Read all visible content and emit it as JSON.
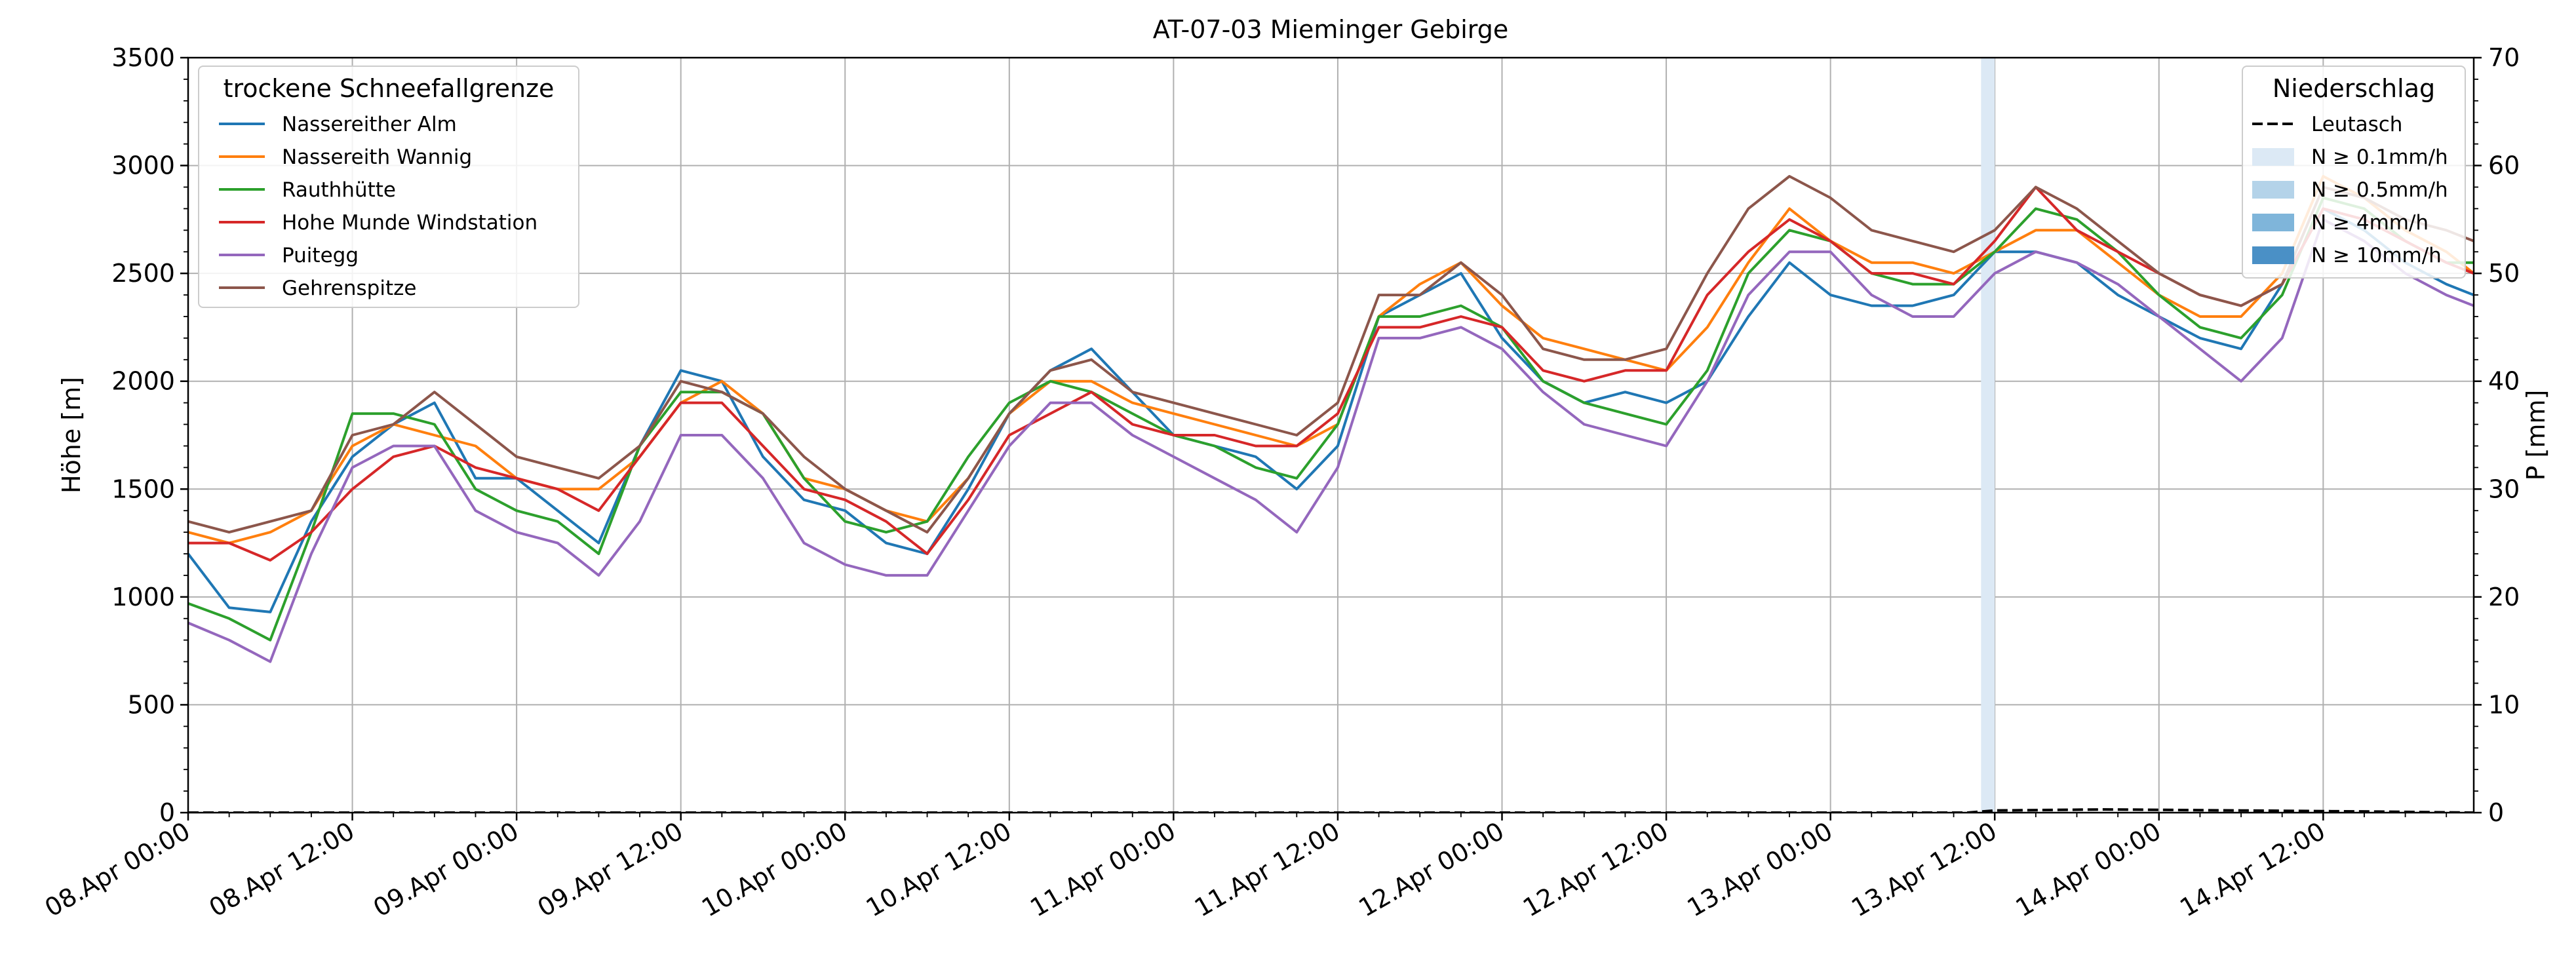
{
  "chart_data": {
    "type": "line",
    "title": "AT-07-03 Mieminger Gebirge",
    "ylabel": "Höhe [m]",
    "y2label": "P [mm]",
    "xlim": [
      "2024-04-08 00:00",
      "2024-04-14 22:00"
    ],
    "ylim": [
      0,
      3500
    ],
    "y2lim": [
      0,
      70
    ],
    "yticks": [
      0,
      500,
      1000,
      1500,
      2000,
      2500,
      3000,
      3500
    ],
    "y2ticks": [
      0,
      10,
      20,
      30,
      40,
      50,
      60,
      70
    ],
    "xticks": [
      "08.Apr 00:00",
      "08.Apr 12:00",
      "09.Apr 00:00",
      "09.Apr 12:00",
      "10.Apr 00:00",
      "10.Apr 12:00",
      "11.Apr 00:00",
      "11.Apr 12:00",
      "12.Apr 00:00",
      "12.Apr 12:00",
      "13.Apr 00:00",
      "13.Apr 12:00",
      "14.Apr 00:00",
      "14.Apr 12:00"
    ],
    "x_unit": "hours since 08.Apr 00:00",
    "grid": true,
    "legend_left": {
      "title": "trockene Schneefallgrenze",
      "placement": "top-left"
    },
    "legend_right": {
      "title": "Niederschlag",
      "placement": "top-right",
      "items": [
        {
          "label": "Leutasch",
          "kind": "dashed-line",
          "color": "#000000"
        },
        {
          "label": "N ≥ 0.1mm/h",
          "kind": "patch",
          "color": "#dce9f5"
        },
        {
          "label": "N ≥ 0.5mm/h",
          "kind": "patch",
          "color": "#b4d3e9"
        },
        {
          "label": "N ≥ 4mm/h",
          "kind": "patch",
          "color": "#7fb5da"
        },
        {
          "label": "N ≥ 10mm/h",
          "kind": "patch",
          "color": "#4a90c6"
        }
      ]
    },
    "precip_bands": [
      {
        "x0": 131,
        "x1": 132,
        "level": "N ≥ 0.1mm/h"
      }
    ],
    "precip_series": {
      "name": "Leutasch",
      "x": [
        0,
        130,
        132,
        140,
        150,
        160,
        167
      ],
      "values": [
        0,
        0,
        0.2,
        0.3,
        0.2,
        0.1,
        0
      ]
    },
    "x": [
      0,
      3,
      6,
      9,
      12,
      15,
      18,
      21,
      24,
      27,
      30,
      33,
      36,
      39,
      42,
      45,
      48,
      51,
      54,
      57,
      60,
      63,
      66,
      69,
      72,
      75,
      78,
      81,
      84,
      87,
      90,
      93,
      96,
      99,
      102,
      105,
      108,
      111,
      114,
      117,
      120,
      123,
      126,
      129,
      132,
      135,
      138,
      141,
      144,
      147,
      150,
      153,
      156,
      159,
      162,
      165,
      167
    ],
    "series": [
      {
        "name": "Nassereither Alm",
        "color": "#1f77b4",
        "values": [
          1200,
          950,
          930,
          1350,
          1650,
          1800,
          1900,
          1550,
          1550,
          1400,
          1250,
          1700,
          2050,
          2000,
          1650,
          1450,
          1400,
          1250,
          1200,
          1500,
          1850,
          2050,
          2150,
          1950,
          1750,
          1700,
          1650,
          1500,
          1700,
          2300,
          2400,
          2500,
          2200,
          2000,
          1900,
          1950,
          1900,
          2000,
          2300,
          2550,
          2400,
          2350,
          2350,
          2400,
          2600,
          2600,
          2550,
          2400,
          2300,
          2200,
          2150,
          2450,
          2800,
          2700,
          2550,
          2450,
          2400
        ]
      },
      {
        "name": "Nassereith Wannig",
        "color": "#ff7f0e",
        "values": [
          1300,
          1250,
          1300,
          1400,
          1700,
          1800,
          1750,
          1700,
          1550,
          1500,
          1500,
          1650,
          1900,
          2000,
          1850,
          1550,
          1500,
          1400,
          1350,
          1550,
          1850,
          2000,
          2000,
          1900,
          1850,
          1800,
          1750,
          1700,
          1800,
          2300,
          2450,
          2550,
          2350,
          2200,
          2150,
          2100,
          2050,
          2250,
          2550,
          2800,
          2650,
          2550,
          2550,
          2500,
          2600,
          2700,
          2700,
          2550,
          2400,
          2300,
          2300,
          2500,
          2950,
          2850,
          2700,
          2600,
          2500
        ]
      },
      {
        "name": "Rauthhütte",
        "color": "#2ca02c",
        "values": [
          970,
          900,
          800,
          1300,
          1850,
          1850,
          1800,
          1500,
          1400,
          1350,
          1200,
          1700,
          1950,
          1950,
          1850,
          1550,
          1350,
          1300,
          1350,
          1650,
          1900,
          2000,
          1950,
          1850,
          1750,
          1700,
          1600,
          1550,
          1800,
          2300,
          2300,
          2350,
          2250,
          2000,
          1900,
          1850,
          1800,
          2050,
          2500,
          2700,
          2650,
          2500,
          2450,
          2450,
          2600,
          2800,
          2750,
          2600,
          2400,
          2250,
          2200,
          2400,
          2850,
          2800,
          2650,
          2550,
          2550
        ]
      },
      {
        "name": "Hohe Munde Windstation",
        "color": "#d62728",
        "values": [
          1250,
          1250,
          1170,
          1300,
          1500,
          1650,
          1700,
          1600,
          1550,
          1500,
          1400,
          1650,
          1900,
          1900,
          1700,
          1500,
          1450,
          1350,
          1200,
          1450,
          1750,
          1850,
          1950,
          1800,
          1750,
          1750,
          1700,
          1700,
          1850,
          2250,
          2250,
          2300,
          2250,
          2050,
          2000,
          2050,
          2050,
          2400,
          2600,
          2750,
          2650,
          2500,
          2500,
          2450,
          2650,
          2900,
          2700,
          2600,
          2500,
          2400,
          2350,
          2450,
          2800,
          2750,
          2650,
          2550,
          2500
        ]
      },
      {
        "name": "Puitegg",
        "color": "#9467bd",
        "values": [
          880,
          800,
          700,
          1200,
          1600,
          1700,
          1700,
          1400,
          1300,
          1250,
          1100,
          1350,
          1750,
          1750,
          1550,
          1250,
          1150,
          1100,
          1100,
          1400,
          1700,
          1900,
          1900,
          1750,
          1650,
          1550,
          1450,
          1300,
          1600,
          2200,
          2200,
          2250,
          2150,
          1950,
          1800,
          1750,
          1700,
          2000,
          2400,
          2600,
          2600,
          2400,
          2300,
          2300,
          2500,
          2600,
          2550,
          2450,
          2300,
          2150,
          2000,
          2200,
          2750,
          2650,
          2500,
          2400,
          2350
        ]
      },
      {
        "name": "Gehrenspitze",
        "color": "#8c564b",
        "values": [
          1350,
          1300,
          1350,
          1400,
          1750,
          1800,
          1950,
          1800,
          1650,
          1600,
          1550,
          1700,
          2000,
          1950,
          1850,
          1650,
          1500,
          1400,
          1300,
          1550,
          1850,
          2050,
          2100,
          1950,
          1900,
          1850,
          1800,
          1750,
          1900,
          2400,
          2400,
          2550,
          2400,
          2150,
          2100,
          2100,
          2150,
          2500,
          2800,
          2950,
          2850,
          2700,
          2650,
          2600,
          2700,
          2900,
          2800,
          2650,
          2500,
          2400,
          2350,
          2450,
          2900,
          2850,
          2750,
          2700,
          2650
        ]
      }
    ]
  }
}
